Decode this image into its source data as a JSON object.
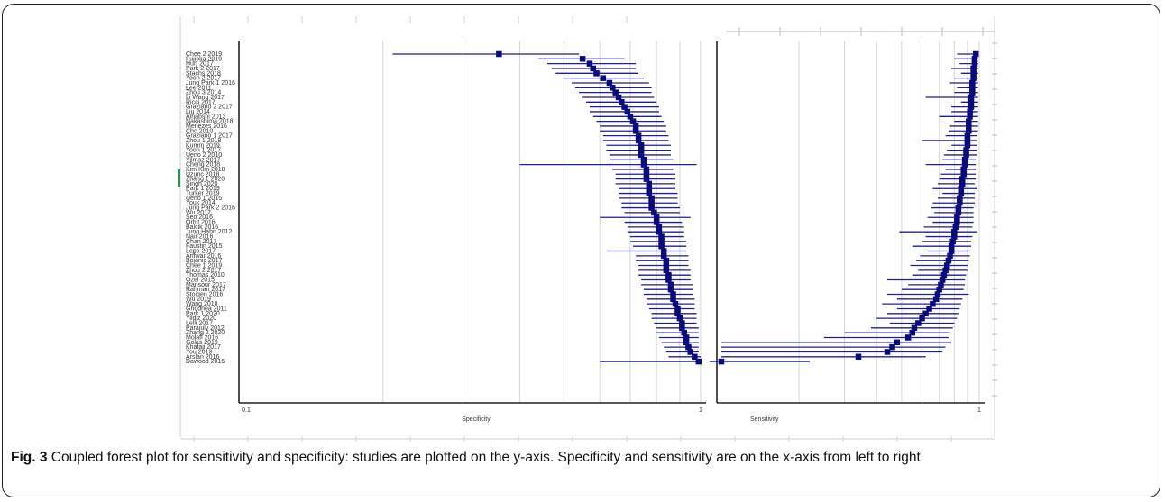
{
  "caption": {
    "fig_label": "Fig. 3",
    "text": "Coupled forest plot for sensitivity and specificity: studies are plotted on the y-axis. Specificity and sensitivity are on the x-axis from left to right"
  },
  "chart_data": [
    {
      "type": "forest",
      "xlabel": "Specificity",
      "x_scale": "log",
      "xlim": [
        0.1,
        1
      ],
      "tick_labels": [
        "0.1",
        "1"
      ],
      "grid": true,
      "studies": [
        "Chee 2 2019",
        "Fujioka 2019",
        "Hurt 2017",
        "Park 2 2017",
        "Stachs 2018",
        "Yoon 2 2017",
        "Jung Park 1 2016",
        "Lee 2011",
        "Zhou 3 2014",
        "Li Wang 2017",
        "Ricci 2017",
        "Graziano 2 2017",
        "Liu 2014",
        "Alhabshi 2013",
        "Nakashima 2018",
        "Menezes 2016",
        "Cho 2010",
        "Graziano 1 2017",
        "Zhou 1 2018",
        "Kumm 2019",
        "Yoon 1 2017",
        "Ueno 2 2010",
        "Yilmaz 2017",
        "Cheng 2018",
        "Kim Kim 2018",
        "Uzunc 2018",
        "Zhang 1 2020",
        "Singh 2020",
        "Park 1 2019",
        "Turker 2019",
        "Ueno 1 2015",
        "Youk 2014",
        "Jung Park 2 2016",
        "Wu 2017",
        "Seo 2016",
        "Orhit 2016",
        "Balcik 2016",
        "Jung Hahn 2012",
        "Nair 2016",
        "Chan 2017",
        "Faustin 2015",
        "Lepo 2017",
        "Arifwar 2016",
        "Bojanic 2017",
        "Chee 1 2019",
        "Zhou 2 2017",
        "Thomas 2010",
        "Ozel 2015",
        "Mansour 2017",
        "Rahman 2017",
        "Stoigen 2016",
        "Wu 2019",
        "Wang 2018",
        "Ghodhea 2011",
        "Park 1 2020",
        "Yildiz 2020",
        "Lelli 2017",
        "Parajuly 2012",
        "Zhang 2 2020",
        "Molafi 2016",
        "Golas 2019",
        "Khafaji 2017",
        "You 2019",
        "Arslan 2016",
        "Dawood 2016"
      ],
      "estimates": [
        0.36,
        0.55,
        0.57,
        0.58,
        0.59,
        0.61,
        0.63,
        0.64,
        0.65,
        0.66,
        0.67,
        0.68,
        0.69,
        0.7,
        0.71,
        0.72,
        0.72,
        0.73,
        0.73,
        0.74,
        0.74,
        0.74,
        0.75,
        0.75,
        0.76,
        0.76,
        0.76,
        0.77,
        0.77,
        0.77,
        0.78,
        0.78,
        0.78,
        0.79,
        0.8,
        0.8,
        0.81,
        0.81,
        0.82,
        0.82,
        0.82,
        0.83,
        0.83,
        0.84,
        0.84,
        0.84,
        0.85,
        0.85,
        0.86,
        0.86,
        0.87,
        0.87,
        0.88,
        0.89,
        0.89,
        0.9,
        0.91,
        0.91,
        0.92,
        0.93,
        0.93,
        0.94,
        0.95,
        0.97,
        0.99
      ],
      "lower": [
        0.21,
        0.44,
        0.46,
        0.47,
        0.48,
        0.5,
        0.52,
        0.53,
        0.54,
        0.55,
        0.56,
        0.57,
        0.57,
        0.58,
        0.59,
        0.6,
        0.6,
        0.61,
        0.61,
        0.62,
        0.62,
        0.63,
        0.63,
        0.4,
        0.64,
        0.65,
        0.65,
        0.65,
        0.66,
        0.66,
        0.66,
        0.67,
        0.67,
        0.68,
        0.6,
        0.68,
        0.69,
        0.69,
        0.7,
        0.7,
        0.71,
        0.62,
        0.72,
        0.72,
        0.73,
        0.73,
        0.73,
        0.74,
        0.74,
        0.75,
        0.75,
        0.76,
        0.76,
        0.77,
        0.78,
        0.78,
        0.79,
        0.8,
        0.8,
        0.81,
        0.82,
        0.83,
        0.84,
        0.85,
        0.6
      ],
      "upper": [
        0.54,
        0.68,
        0.72,
        0.72,
        0.73,
        0.75,
        0.77,
        0.78,
        0.78,
        0.79,
        0.8,
        0.81,
        0.81,
        0.82,
        0.83,
        0.84,
        0.84,
        0.85,
        0.85,
        0.86,
        0.86,
        0.86,
        0.87,
        0.98,
        0.87,
        0.88,
        0.88,
        0.88,
        0.88,
        0.89,
        0.89,
        0.89,
        0.9,
        0.9,
        0.95,
        0.91,
        0.92,
        0.92,
        0.92,
        0.93,
        0.93,
        0.93,
        0.94,
        0.94,
        0.94,
        0.95,
        0.95,
        0.95,
        0.96,
        0.96,
        0.96,
        0.97,
        0.97,
        0.97,
        0.98,
        0.98,
        0.98,
        0.99,
        0.99,
        0.99,
        0.99,
        0.99,
        0.99,
        1.0,
        1.0
      ]
    },
    {
      "type": "forest",
      "xlabel": "Sensitivity",
      "x_scale": "log",
      "xlim": [
        0.1,
        1
      ],
      "tick_labels": [
        "1"
      ],
      "grid": true,
      "estimates": [
        0.97,
        0.96,
        0.96,
        0.95,
        0.95,
        0.95,
        0.94,
        0.94,
        0.94,
        0.93,
        0.93,
        0.93,
        0.92,
        0.92,
        0.91,
        0.91,
        0.91,
        0.9,
        0.9,
        0.9,
        0.89,
        0.89,
        0.88,
        0.88,
        0.87,
        0.87,
        0.86,
        0.86,
        0.85,
        0.85,
        0.84,
        0.84,
        0.83,
        0.83,
        0.82,
        0.82,
        0.81,
        0.8,
        0.8,
        0.79,
        0.78,
        0.78,
        0.77,
        0.76,
        0.75,
        0.74,
        0.73,
        0.72,
        0.71,
        0.7,
        0.69,
        0.68,
        0.66,
        0.64,
        0.62,
        0.6,
        0.58,
        0.56,
        0.55,
        0.53,
        0.48,
        0.46,
        0.44,
        0.34,
        0.1
      ],
      "lower": [
        0.82,
        0.8,
        0.84,
        0.78,
        0.85,
        0.8,
        0.77,
        0.82,
        0.8,
        0.62,
        0.85,
        0.78,
        0.78,
        0.7,
        0.8,
        0.77,
        0.76,
        0.74,
        0.6,
        0.78,
        0.75,
        0.73,
        0.72,
        0.62,
        0.74,
        0.71,
        0.7,
        0.69,
        0.66,
        0.72,
        0.69,
        0.66,
        0.65,
        0.67,
        0.63,
        0.66,
        0.61,
        0.49,
        0.62,
        0.6,
        0.55,
        0.63,
        0.59,
        0.57,
        0.54,
        0.58,
        0.55,
        0.44,
        0.53,
        0.5,
        0.44,
        0.48,
        0.42,
        0.48,
        0.44,
        0.4,
        0.45,
        0.38,
        0.3,
        0.25,
        0.1,
        0.1,
        0.1,
        0.1,
        0.08
      ],
      "upper": [
        0.99,
        0.99,
        0.99,
        0.99,
        0.99,
        0.99,
        0.99,
        0.99,
        0.99,
        0.99,
        0.99,
        0.99,
        0.99,
        0.99,
        0.99,
        0.99,
        0.99,
        0.98,
        0.98,
        0.98,
        0.98,
        0.98,
        0.97,
        0.97,
        0.97,
        0.97,
        0.97,
        0.96,
        0.98,
        0.96,
        0.96,
        0.96,
        0.95,
        0.95,
        0.95,
        0.95,
        0.94,
        0.98,
        0.94,
        0.93,
        0.93,
        0.92,
        0.92,
        0.91,
        0.9,
        0.9,
        0.89,
        0.88,
        0.88,
        0.87,
        0.91,
        0.86,
        0.85,
        0.84,
        0.83,
        0.82,
        0.8,
        0.79,
        0.77,
        0.76,
        0.78,
        0.74,
        0.72,
        0.62,
        0.22
      ]
    }
  ]
}
